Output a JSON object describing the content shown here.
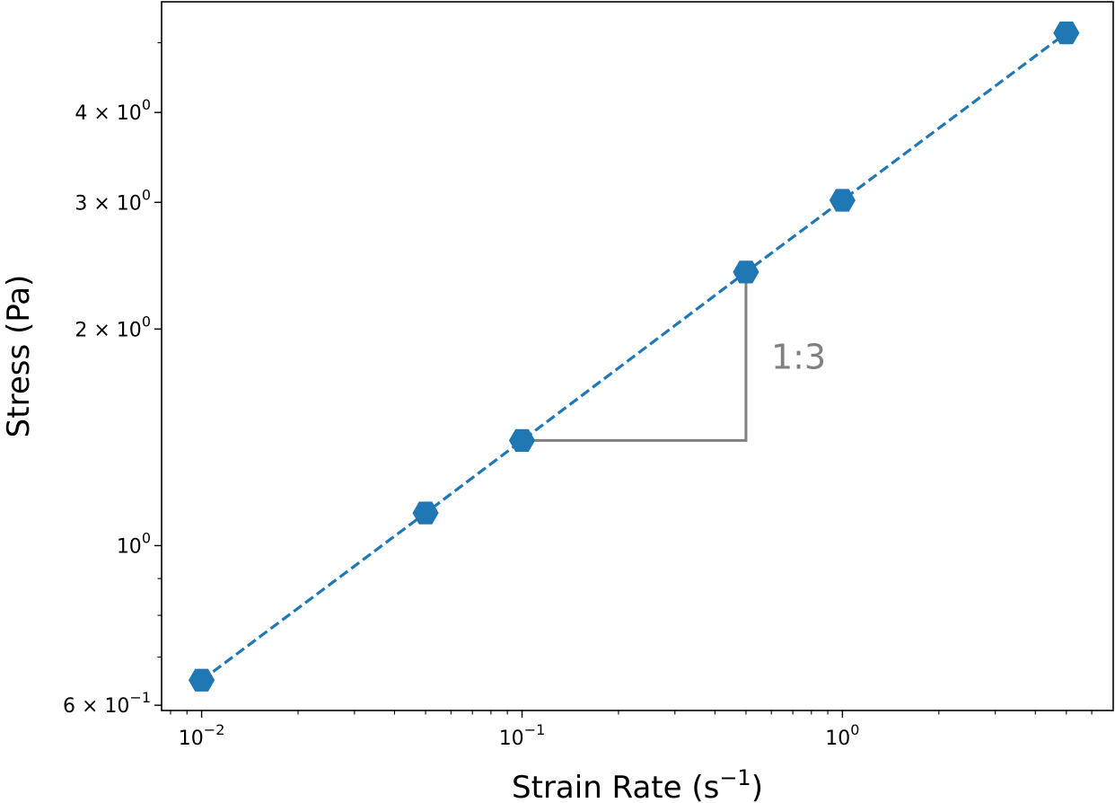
{
  "chart_data": {
    "type": "line",
    "title": "",
    "xscale": "log",
    "yscale": "log",
    "xlim": [
      0.0075,
      7
    ],
    "ylim": [
      0.59,
      5.7
    ],
    "xlabel_text": "Strain Rate (s",
    "xlabel_exp": "−1",
    "xlabel_close": ")",
    "ylabel": "Stress (Pa)",
    "series": [
      {
        "x": [
          0.01,
          0.05,
          0.1,
          0.5,
          1,
          5
        ],
        "y": [
          0.65,
          1.11,
          1.4,
          2.4,
          3.02,
          5.16
        ],
        "color": "#1f77b4",
        "linestyle": "dashed",
        "marker": "hexagon"
      }
    ],
    "x_ticks": [
      {
        "value": 0.01,
        "base": "10",
        "exp": "−2"
      },
      {
        "value": 0.1,
        "base": "10",
        "exp": "−1"
      },
      {
        "value": 1,
        "base": "10",
        "exp": "0"
      }
    ],
    "y_ticks": [
      {
        "value": 0.6,
        "base": "6 × 10",
        "exp": "−1"
      },
      {
        "value": 1,
        "base": "10",
        "exp": "0"
      },
      {
        "value": 2,
        "base": "2 × 10",
        "exp": "0"
      },
      {
        "value": 3,
        "base": "3 × 10",
        "exp": "0"
      },
      {
        "value": 4,
        "base": "4 × 10",
        "exp": "0"
      }
    ],
    "slope_annotation": {
      "label": "1:3",
      "x_start": 0.1,
      "x_end": 0.5,
      "y_start": 1.4,
      "y_end": 2.4,
      "color": "#808080"
    },
    "grid": false,
    "legend": "none"
  }
}
